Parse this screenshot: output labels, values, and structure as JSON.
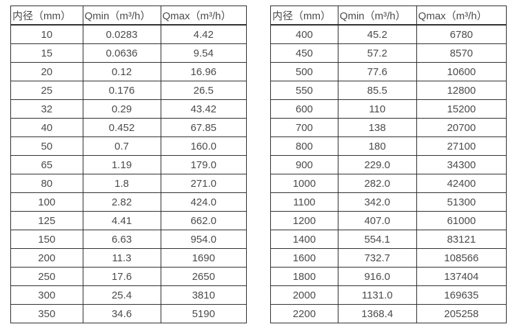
{
  "colors": {
    "background": "#ffffff",
    "border": "#2b2b2b",
    "text": "#4a4a4a"
  },
  "tables": [
    {
      "name": "small-diameter-spec-table",
      "headers": [
        "内径（mm）",
        "Qmin（m³/h）",
        "Qmax（m³/h）"
      ],
      "rows": [
        [
          "10",
          "0.0283",
          "4.42"
        ],
        [
          "15",
          "0.0636",
          "9.54"
        ],
        [
          "20",
          "0.12",
          "16.96"
        ],
        [
          "25",
          "0.176",
          "26.5"
        ],
        [
          "32",
          "0.29",
          "43.42"
        ],
        [
          "40",
          "0.452",
          "67.85"
        ],
        [
          "50",
          "0.7",
          "160.0"
        ],
        [
          "65",
          "1.19",
          "179.0"
        ],
        [
          "80",
          "1.8",
          "271.0"
        ],
        [
          "100",
          "2.82",
          "424.0"
        ],
        [
          "125",
          "4.41",
          "662.0"
        ],
        [
          "150",
          "6.63",
          "954.0"
        ],
        [
          "200",
          "11.3",
          "1690"
        ],
        [
          "250",
          "17.6",
          "2650"
        ],
        [
          "300",
          "25.4",
          "3810"
        ],
        [
          "350",
          "34.6",
          "5190"
        ]
      ]
    },
    {
      "name": "large-diameter-spec-table",
      "headers": [
        "内径（mm）",
        "Qmin（m³/h）",
        "Qmax（m³/h）"
      ],
      "rows": [
        [
          "400",
          "45.2",
          "6780"
        ],
        [
          "450",
          "57.2",
          "8570"
        ],
        [
          "500",
          "77.6",
          "10600"
        ],
        [
          "550",
          "85.5",
          "12800"
        ],
        [
          "600",
          "110",
          "15200"
        ],
        [
          "700",
          "138",
          "20700"
        ],
        [
          "800",
          "180",
          "27100"
        ],
        [
          "900",
          "229.0",
          "34300"
        ],
        [
          "1000",
          "282.0",
          "42400"
        ],
        [
          "1100",
          "342.0",
          "51300"
        ],
        [
          "1200",
          "407.0",
          "61000"
        ],
        [
          "1400",
          "554.1",
          "83121"
        ],
        [
          "1600",
          "732.7",
          "108566"
        ],
        [
          "1800",
          "916.0",
          "137404"
        ],
        [
          "2000",
          "1131.0",
          "169635"
        ],
        [
          "2200",
          "1368.4",
          "205258"
        ]
      ]
    }
  ]
}
